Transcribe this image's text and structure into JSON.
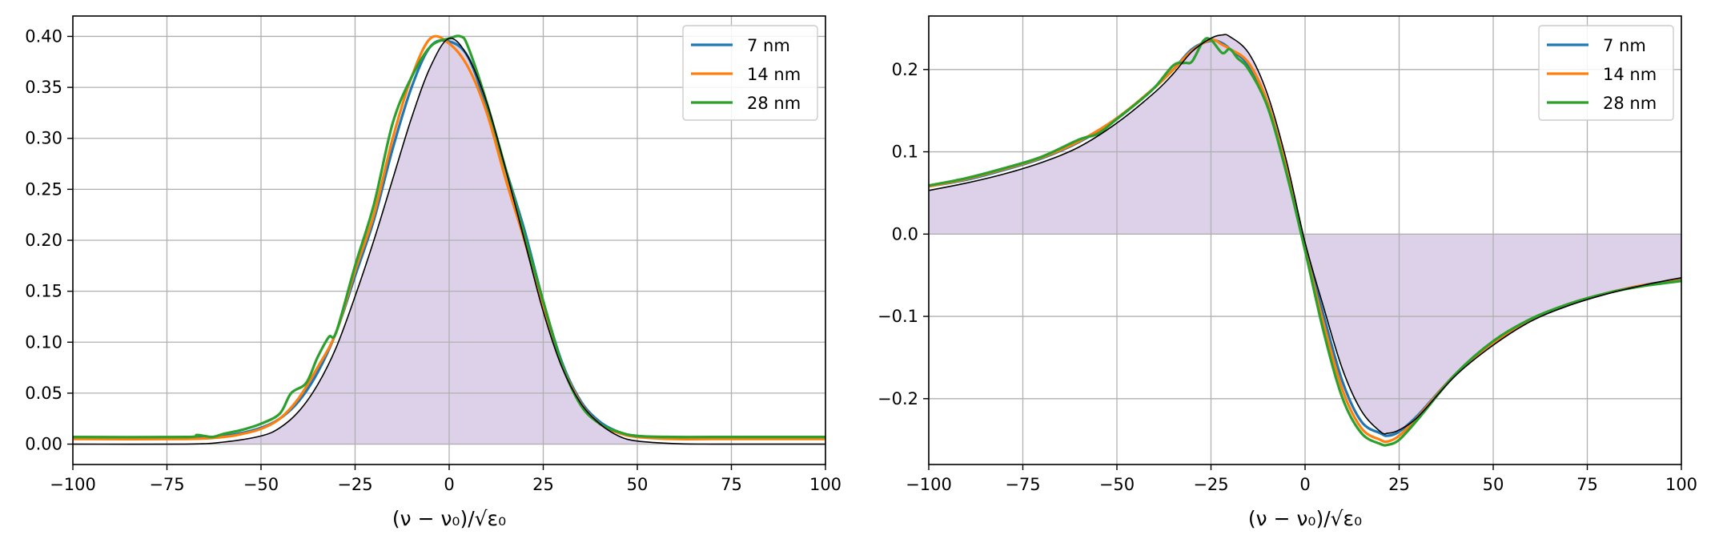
{
  "chart_data": [
    {
      "type": "line",
      "xlabel": "(ν − ν₀)/√ε₀",
      "xlim": [
        -100,
        100
      ],
      "ylim": [
        -0.02,
        0.42
      ],
      "xticks": [
        -100,
        -75,
        -50,
        -25,
        0,
        25,
        50,
        75,
        100
      ],
      "xtick_labels": [
        "−100",
        "−75",
        "−50",
        "−25",
        "0",
        "25",
        "50",
        "75",
        "100"
      ],
      "yticks": [
        0.0,
        0.05,
        0.1,
        0.15,
        0.2,
        0.25,
        0.3,
        0.35,
        0.4
      ],
      "ytick_labels": [
        "0.00",
        "0.05",
        "0.10",
        "0.15",
        "0.20",
        "0.25",
        "0.30",
        "0.35",
        "0.40"
      ],
      "grid": true,
      "legend_position": "top-right",
      "reference_curve": {
        "color": "#000000",
        "fill_color": "#ddd1ea",
        "x": [
          -100,
          -70,
          -60,
          -50,
          -45,
          -40,
          -35,
          -30,
          -25,
          -20,
          -15,
          -10,
          -5,
          0,
          5,
          10,
          15,
          20,
          25,
          30,
          35,
          40,
          45,
          50,
          60,
          70,
          100
        ],
        "y": [
          0.0,
          0.0,
          0.002,
          0.008,
          0.016,
          0.032,
          0.058,
          0.095,
          0.145,
          0.2,
          0.26,
          0.32,
          0.37,
          0.398,
          0.38,
          0.335,
          0.27,
          0.2,
          0.13,
          0.075,
          0.04,
          0.02,
          0.008,
          0.003,
          0.0005,
          0.0,
          0.0
        ]
      },
      "series": [
        {
          "name": "7 nm",
          "color": "#1f77b4",
          "x": [
            -100,
            -70,
            -60,
            -55,
            -50,
            -45,
            -40,
            -35,
            -30,
            -25,
            -20,
            -15,
            -10,
            -5,
            0,
            5,
            10,
            15,
            20,
            25,
            30,
            35,
            40,
            45,
            50,
            60,
            70,
            80,
            100
          ],
          "y": [
            0.006,
            0.006,
            0.008,
            0.011,
            0.016,
            0.025,
            0.042,
            0.07,
            0.11,
            0.165,
            0.22,
            0.29,
            0.35,
            0.39,
            0.395,
            0.38,
            0.33,
            0.27,
            0.21,
            0.14,
            0.08,
            0.042,
            0.022,
            0.012,
            0.008,
            0.006,
            0.006,
            0.006,
            0.006
          ]
        },
        {
          "name": "14 nm",
          "color": "#ff7f0e",
          "x": [
            -100,
            -70,
            -60,
            -55,
            -50,
            -45,
            -40,
            -35,
            -30,
            -25,
            -20,
            -15,
            -10,
            -5,
            0,
            5,
            10,
            15,
            20,
            25,
            30,
            35,
            40,
            45,
            50,
            60,
            70,
            80,
            100
          ],
          "y": [
            0.005,
            0.005,
            0.007,
            0.01,
            0.015,
            0.025,
            0.045,
            0.075,
            0.11,
            0.17,
            0.225,
            0.3,
            0.36,
            0.398,
            0.393,
            0.37,
            0.325,
            0.26,
            0.2,
            0.135,
            0.078,
            0.04,
            0.02,
            0.011,
            0.007,
            0.005,
            0.005,
            0.005,
            0.005
          ]
        },
        {
          "name": "28 nm",
          "color": "#2ca02c",
          "x": [
            -100,
            -70,
            -67,
            -63,
            -60,
            -55,
            -50,
            -45,
            -42,
            -38,
            -35,
            -32,
            -30,
            -25,
            -20,
            -15,
            -10,
            -5,
            0,
            3,
            5,
            10,
            15,
            20,
            25,
            30,
            35,
            40,
            45,
            50,
            60,
            70,
            100
          ],
          "y": [
            0.007,
            0.007,
            0.009,
            0.007,
            0.01,
            0.014,
            0.02,
            0.03,
            0.05,
            0.06,
            0.085,
            0.105,
            0.11,
            0.175,
            0.235,
            0.315,
            0.36,
            0.39,
            0.398,
            0.4,
            0.39,
            0.335,
            0.27,
            0.205,
            0.14,
            0.078,
            0.038,
            0.02,
            0.012,
            0.008,
            0.007,
            0.007,
            0.007
          ]
        }
      ]
    },
    {
      "type": "line",
      "xlabel": "(ν − ν₀)/√ε₀",
      "xlim": [
        -100,
        100
      ],
      "ylim": [
        -0.28,
        0.265
      ],
      "xticks": [
        -100,
        -75,
        -50,
        -25,
        0,
        25,
        50,
        75,
        100
      ],
      "xtick_labels": [
        "−100",
        "−75",
        "−50",
        "−25",
        "0",
        "25",
        "50",
        "75",
        "100"
      ],
      "yticks": [
        -0.2,
        -0.1,
        0.0,
        0.1,
        0.2
      ],
      "ytick_labels": [
        "−0.2",
        "−0.1",
        "0.0",
        "0.1",
        "0.2"
      ],
      "grid": true,
      "legend_position": "top-right",
      "reference_curve": {
        "color": "#000000",
        "fill_color": "#ddd1ea",
        "x": [
          -100,
          -90,
          -80,
          -70,
          -60,
          -50,
          -40,
          -35,
          -30,
          -25,
          -22,
          -20,
          -15,
          -10,
          -5,
          0,
          5,
          10,
          15,
          20,
          22,
          25,
          30,
          40,
          50,
          60,
          70,
          80,
          90,
          100
        ],
        "y": [
          0.053,
          0.062,
          0.073,
          0.087,
          0.106,
          0.135,
          0.172,
          0.195,
          0.222,
          0.238,
          0.242,
          0.24,
          0.22,
          0.17,
          0.09,
          -0.01,
          -0.09,
          -0.165,
          -0.215,
          -0.24,
          -0.242,
          -0.238,
          -0.222,
          -0.172,
          -0.135,
          -0.106,
          -0.087,
          -0.073,
          -0.062,
          -0.053
        ]
      },
      "series": [
        {
          "name": "7 nm",
          "color": "#1f77b4",
          "x": [
            -100,
            -90,
            -80,
            -70,
            -60,
            -50,
            -40,
            -35,
            -30,
            -25,
            -22,
            -20,
            -15,
            -10,
            -5,
            0,
            5,
            10,
            15,
            20,
            22,
            25,
            30,
            40,
            50,
            60,
            70,
            80,
            90,
            100
          ],
          "y": [
            0.058,
            0.066,
            0.078,
            0.092,
            0.112,
            0.14,
            0.178,
            0.2,
            0.225,
            0.235,
            0.232,
            0.225,
            0.205,
            0.16,
            0.08,
            -0.015,
            -0.1,
            -0.18,
            -0.228,
            -0.242,
            -0.245,
            -0.24,
            -0.22,
            -0.17,
            -0.132,
            -0.104,
            -0.085,
            -0.072,
            -0.062,
            -0.055
          ]
        },
        {
          "name": "14 nm",
          "color": "#ff7f0e",
          "x": [
            -100,
            -90,
            -80,
            -70,
            -60,
            -50,
            -40,
            -35,
            -30,
            -25,
            -22,
            -20,
            -15,
            -10,
            -5,
            0,
            5,
            10,
            15,
            20,
            22,
            25,
            30,
            40,
            50,
            60,
            70,
            80,
            90,
            100
          ],
          "y": [
            0.058,
            0.067,
            0.079,
            0.093,
            0.113,
            0.141,
            0.178,
            0.2,
            0.223,
            0.236,
            0.23,
            0.225,
            0.208,
            0.16,
            0.08,
            -0.018,
            -0.11,
            -0.19,
            -0.236,
            -0.25,
            -0.252,
            -0.245,
            -0.222,
            -0.17,
            -0.132,
            -0.104,
            -0.085,
            -0.072,
            -0.062,
            -0.056
          ]
        },
        {
          "name": "28 nm",
          "color": "#2ca02c",
          "x": [
            -100,
            -90,
            -80,
            -70,
            -60,
            -55,
            -50,
            -45,
            -40,
            -35,
            -32,
            -30,
            -27,
            -25,
            -22,
            -20,
            -18,
            -15,
            -10,
            -5,
            0,
            5,
            10,
            15,
            20,
            22,
            25,
            30,
            40,
            50,
            60,
            70,
            80,
            90,
            100
          ],
          "y": [
            0.059,
            0.068,
            0.08,
            0.094,
            0.115,
            0.122,
            0.14,
            0.158,
            0.178,
            0.205,
            0.208,
            0.21,
            0.235,
            0.236,
            0.22,
            0.225,
            0.214,
            0.2,
            0.155,
            0.075,
            -0.02,
            -0.12,
            -0.2,
            -0.242,
            -0.255,
            -0.256,
            -0.25,
            -0.225,
            -0.17,
            -0.13,
            -0.103,
            -0.085,
            -0.072,
            -0.063,
            -0.057
          ]
        }
      ]
    }
  ]
}
